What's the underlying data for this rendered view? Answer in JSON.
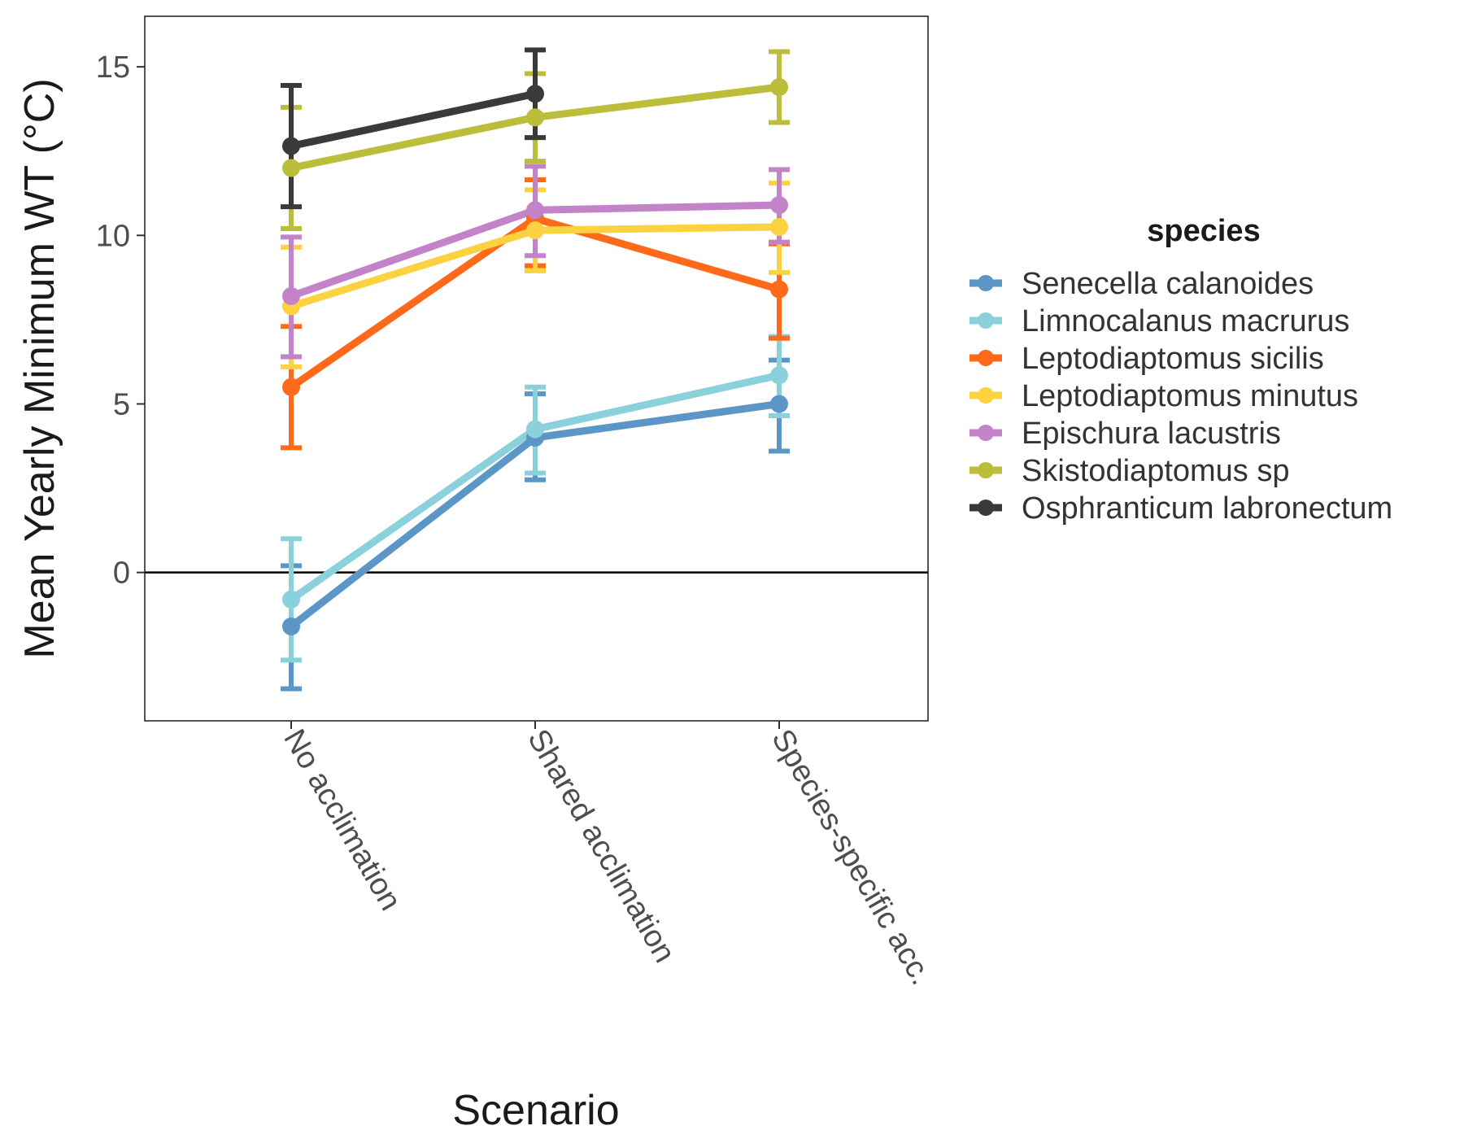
{
  "chart_data": {
    "type": "line",
    "xlabel": "Scenario",
    "ylabel": "Mean Yearly Minimum WT (°C)",
    "categories": [
      "No acclimation",
      "Shared acclimation",
      "Species-specific acc."
    ],
    "ylim": [
      -4.4,
      16.5
    ],
    "yticks": [
      0,
      5,
      10,
      15
    ],
    "ytick_labels": [
      "0",
      "5",
      "10",
      "15"
    ],
    "reference_line_y": 0,
    "grid": false,
    "legend": {
      "title": "species",
      "position": "right"
    },
    "series": [
      {
        "name": "Senecella calanoides",
        "color": "#5b96c6",
        "values": [
          -1.6,
          4.0,
          5.0
        ],
        "err_low": [
          -3.45,
          2.75,
          3.6
        ],
        "err_high": [
          0.2,
          5.3,
          6.3
        ]
      },
      {
        "name": "Limnocalanus macrurus",
        "color": "#8ad1dc",
        "values": [
          -0.8,
          4.25,
          5.85
        ],
        "err_low": [
          -2.6,
          2.95,
          4.65
        ],
        "err_high": [
          1.0,
          5.5,
          7.0
        ]
      },
      {
        "name": "Leptodiaptomus sicilis",
        "color": "#fe6a19",
        "values": [
          5.5,
          10.5,
          8.4
        ],
        "err_low": [
          3.7,
          9.1,
          6.95
        ],
        "err_high": [
          7.3,
          11.65,
          9.75
        ]
      },
      {
        "name": "Leptodiaptomus minutus",
        "color": "#fdd240",
        "values": [
          7.9,
          10.15,
          10.25
        ],
        "err_low": [
          6.1,
          8.95,
          8.9
        ],
        "err_high": [
          9.65,
          11.35,
          11.55
        ]
      },
      {
        "name": "Epischura lacustris",
        "color": "#c283c9",
        "values": [
          8.2,
          10.75,
          10.9
        ],
        "err_low": [
          6.4,
          9.4,
          9.8
        ],
        "err_high": [
          9.95,
          12.05,
          11.95
        ]
      },
      {
        "name": "Skistodiaptomus sp",
        "color": "#bdbd3c",
        "values": [
          12.0,
          13.5,
          14.4
        ],
        "err_low": [
          10.2,
          12.2,
          13.35
        ],
        "err_high": [
          13.8,
          14.8,
          15.45
        ]
      },
      {
        "name": "Osphranticum labronectum",
        "color": "#3a3a3a",
        "values": [
          12.65,
          14.2,
          null
        ],
        "err_low": [
          10.85,
          12.9,
          null
        ],
        "err_high": [
          14.45,
          15.5,
          null
        ]
      }
    ]
  }
}
